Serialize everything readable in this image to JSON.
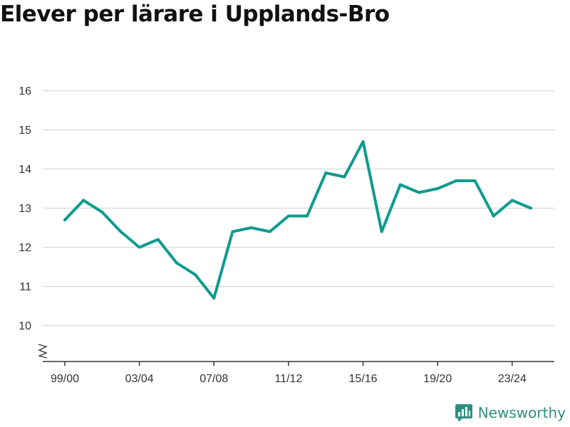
{
  "chart_data": {
    "type": "line",
    "title": "Elever per lärare i Upplands-Bro",
    "xlabel": "",
    "ylabel": "",
    "x": [
      "99/00",
      "00/01",
      "01/02",
      "02/03",
      "03/04",
      "04/05",
      "05/06",
      "06/07",
      "07/08",
      "08/09",
      "09/10",
      "10/11",
      "11/12",
      "12/13",
      "13/14",
      "14/15",
      "15/16",
      "16/17",
      "17/18",
      "18/19",
      "19/20",
      "20/21",
      "21/22",
      "22/23",
      "23/24",
      "24/25"
    ],
    "x_tick_labels": [
      "99/00",
      "03/04",
      "07/08",
      "11/12",
      "15/16",
      "19/20",
      "23/24"
    ],
    "y_ticks": [
      10,
      11,
      12,
      13,
      14,
      15,
      16
    ],
    "ylim": [
      9.4,
      16.3
    ],
    "y_axis_break": true,
    "grid": true,
    "series": [
      {
        "values": [
          12.7,
          13.2,
          12.9,
          12.4,
          12.0,
          12.2,
          11.6,
          11.3,
          10.7,
          12.4,
          12.5,
          12.4,
          12.8,
          12.8,
          13.9,
          13.8,
          14.7,
          12.4,
          13.6,
          13.4,
          13.5,
          13.7,
          13.7,
          12.8,
          13.2,
          13.0
        ],
        "color": "#0f9b8e"
      }
    ]
  },
  "colors": {
    "line": "#0f9b8e",
    "grid": "#dddddd",
    "axis": "#333333",
    "brand": "#2f8f82"
  },
  "branding": {
    "name": "Newsworthy",
    "icon": "newsworthy-logo-icon"
  }
}
